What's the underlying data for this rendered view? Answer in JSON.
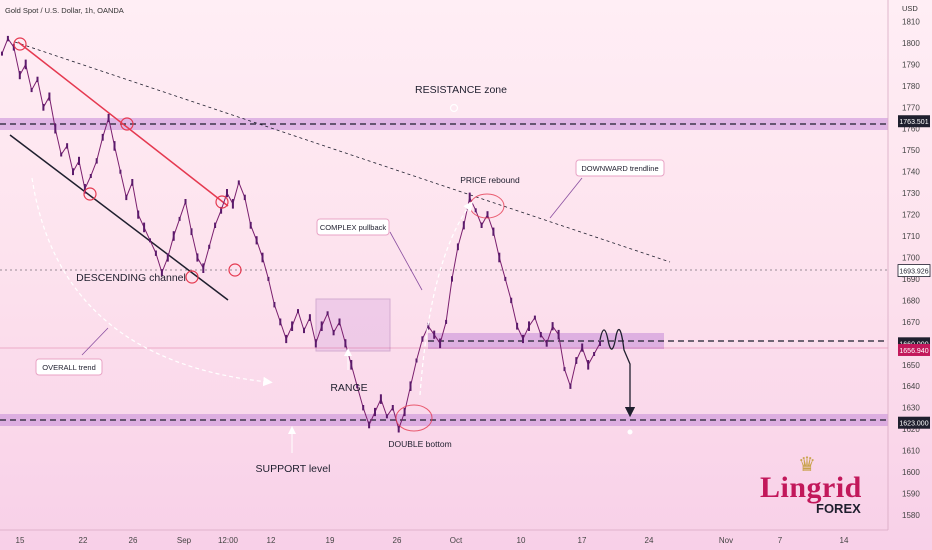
{
  "header": {
    "symbol_line": "Gold Spot / U.S. Dollar, 1h, OANDA",
    "currency": "USD"
  },
  "chart_data": {
    "type": "line",
    "title": "Gold Spot / U.S. Dollar, 1h, OANDA",
    "ylabel": "USD",
    "ylim": [
      1573,
      1820
    ],
    "y_ticks": [
      1580,
      1590,
      1600,
      1610,
      1620,
      1630,
      1640,
      1650,
      1660,
      1670,
      1680,
      1690,
      1700,
      1710,
      1720,
      1730,
      1740,
      1750,
      1760,
      1770,
      1780,
      1790,
      1800,
      1810
    ],
    "x_tick_labels": [
      "15",
      "22",
      "26",
      "Sep",
      "12:00",
      "12",
      "19",
      "26",
      "Oct",
      "10",
      "17",
      "24",
      "Nov",
      "7",
      "14"
    ],
    "series": [
      {
        "values": [
          1795,
          1802,
          1798,
          1785,
          1790,
          1778,
          1783,
          1770,
          1775,
          1760,
          1748,
          1752,
          1740,
          1745,
          1732,
          1738,
          1745,
          1756,
          1765,
          1752,
          1740,
          1728,
          1735,
          1720,
          1714,
          1708,
          1702,
          1693,
          1700,
          1710,
          1718,
          1726,
          1712,
          1700,
          1695,
          1705,
          1715,
          1722,
          1730,
          1725,
          1735,
          1728,
          1715,
          1708,
          1700,
          1690,
          1678,
          1670,
          1662,
          1668,
          1675,
          1666,
          1672,
          1660,
          1668,
          1674,
          1665,
          1670,
          1660,
          1650,
          1640,
          1630,
          1622,
          1628,
          1634,
          1626,
          1630,
          1620,
          1628,
          1640,
          1652,
          1662,
          1668,
          1664,
          1660,
          1670,
          1690,
          1705,
          1715,
          1728,
          1722,
          1715,
          1720,
          1712,
          1700,
          1690,
          1680,
          1668,
          1662,
          1668,
          1672,
          1664,
          1660,
          1668,
          1664,
          1648,
          1640,
          1652,
          1658,
          1650,
          1655,
          1660
        ]
      }
    ],
    "price_levels": [
      {
        "label": "1763.501",
        "value": 1763.5,
        "bg": "#1f1f2e",
        "fg": "#ffffff"
      },
      {
        "label": "1693.926",
        "value": 1693.9,
        "bg": "#ffffff",
        "fg": "#1f1f2e"
      },
      {
        "label": "1660.000",
        "value": 1660.0,
        "bg": "#1f1f2e",
        "fg": "#ffffff"
      },
      {
        "label": "1656.940",
        "value": 1656.9,
        "bg": "#c2185b",
        "fg": "#ffffff"
      },
      {
        "label": "1623.000",
        "value": 1623.0,
        "bg": "#1f1f2e",
        "fg": "#ffffff"
      }
    ],
    "grid": false
  },
  "annotations": {
    "resistance": "RESISTANCE zone",
    "price_rebound": "PRICE rebound",
    "downward_trendline": "DOWNWARD trendline",
    "complex_pullback": "COMPLEX pullback",
    "descending_channel": "DESCENDING channel",
    "overall_trend": "OVERALL trend",
    "range": "RANGE",
    "double_bottom": "DOUBLE bottom",
    "support": "SUPPORT level"
  },
  "logo": {
    "name": "Lingrid",
    "sub": "FOREX",
    "icon": "crown-icon"
  },
  "colors": {
    "accent": "#c2185b",
    "channel_red": "#e53950",
    "zone": "#c58bd9",
    "bg_top": "#ffeef5",
    "bg_bottom": "#f8d0e8"
  }
}
